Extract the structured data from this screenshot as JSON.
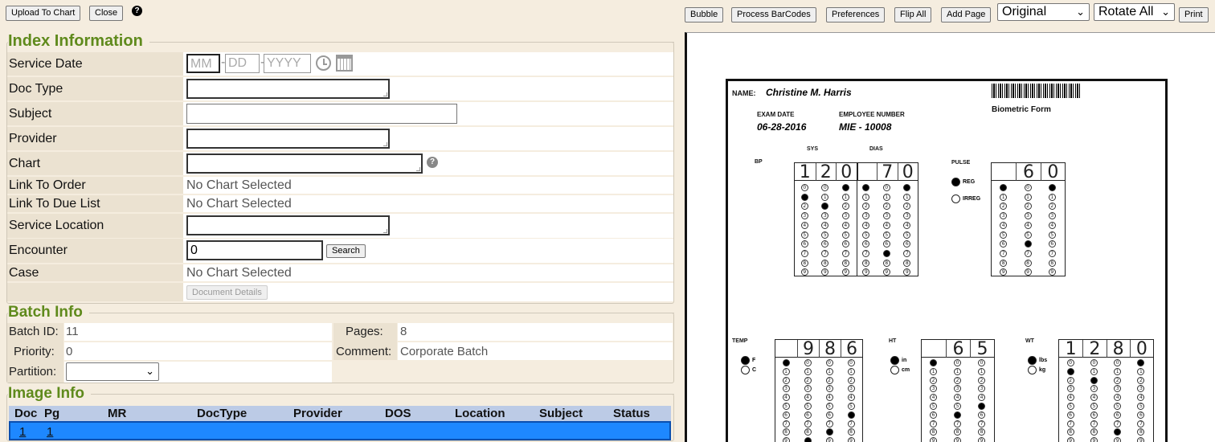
{
  "toolbar_left": {
    "upload": "Upload To Chart",
    "close": "Close",
    "help": "?"
  },
  "toolbar_right": {
    "bubble": "Bubble",
    "process": "Process BarCodes",
    "preferences": "Preferences",
    "flip": "Flip All",
    "add_page": "Add Page",
    "view_select": "Original",
    "rotate_select": "Rotate All",
    "print": "Print"
  },
  "index": {
    "title": "Index Information",
    "service_date": {
      "label": "Service Date",
      "mm": "MM",
      "dd": "DD",
      "yyyy": "YYYY"
    },
    "doc_type": "Doc Type",
    "subject": "Subject",
    "provider": "Provider",
    "chart": "Chart",
    "link_order": {
      "label": "Link To Order",
      "value": "No Chart Selected"
    },
    "link_due": {
      "label": "Link To Due List",
      "value": "No Chart Selected"
    },
    "service_location": "Service Location",
    "encounter": {
      "label": "Encounter",
      "value": "0",
      "search": "Search"
    },
    "case": {
      "label": "Case",
      "value": "No Chart Selected"
    },
    "doc_details": "Document Details"
  },
  "batch": {
    "title": "Batch Info",
    "id_label": "Batch ID:",
    "id": "11",
    "pages_label": "Pages:",
    "pages": "8",
    "priority_label": "Priority:",
    "priority": "0",
    "comment_label": "Comment:",
    "comment": "Corporate Batch",
    "partition_label": "Partition:"
  },
  "image": {
    "title": "Image Info",
    "columns": [
      "Doc",
      "Pg",
      "MR",
      "DocType",
      "Provider",
      "DOS",
      "Location",
      "Subject",
      "Status"
    ],
    "rows": [
      {
        "doc": "1",
        "pg": "1"
      }
    ],
    "selected_color": "#1e88ff"
  },
  "document": {
    "name_label": "NAME:",
    "name": "Christine M. Harris",
    "exam_label": "EXAM DATE",
    "exam": "06-28-2016",
    "emp_label": "EMPLOYEE NUMBER",
    "emp": "MIE - 10008",
    "form_title": "Biometric Form",
    "bp": "BP",
    "sys": "SYS",
    "dias": "DIAS",
    "pulse": "PULSE",
    "temp": "TEMP",
    "ht": "HT",
    "wt": "WT",
    "grids": [
      {
        "id": "bp",
        "headers": [
          "1",
          "2",
          "0",
          "",
          "7",
          "0"
        ],
        "filled": [
          1,
          2,
          0,
          0,
          7,
          0
        ]
      },
      {
        "id": "pulse",
        "headers": [
          "",
          "6",
          "0"
        ],
        "filled": [
          0,
          6,
          0
        ]
      },
      {
        "id": "temp",
        "headers": [
          "",
          "9",
          "8",
          "6"
        ],
        "filled": [
          0,
          9,
          8,
          6
        ]
      },
      {
        "id": "ht",
        "headers": [
          "",
          "6",
          "5"
        ],
        "filled": [
          0,
          6,
          5
        ]
      },
      {
        "id": "wt",
        "headers": [
          "1",
          "2",
          "8",
          "0"
        ],
        "filled": [
          1,
          2,
          8,
          0
        ]
      }
    ],
    "radios": [
      {
        "label": "REG",
        "filled": true
      },
      {
        "label": "IRREG",
        "filled": false
      },
      {
        "label": "F",
        "filled": true
      },
      {
        "label": "C",
        "filled": false
      },
      {
        "label": "in",
        "filled": true
      },
      {
        "label": "cm",
        "filled": false
      },
      {
        "label": "lbs",
        "filled": true
      },
      {
        "label": "kg",
        "filled": false
      }
    ]
  }
}
